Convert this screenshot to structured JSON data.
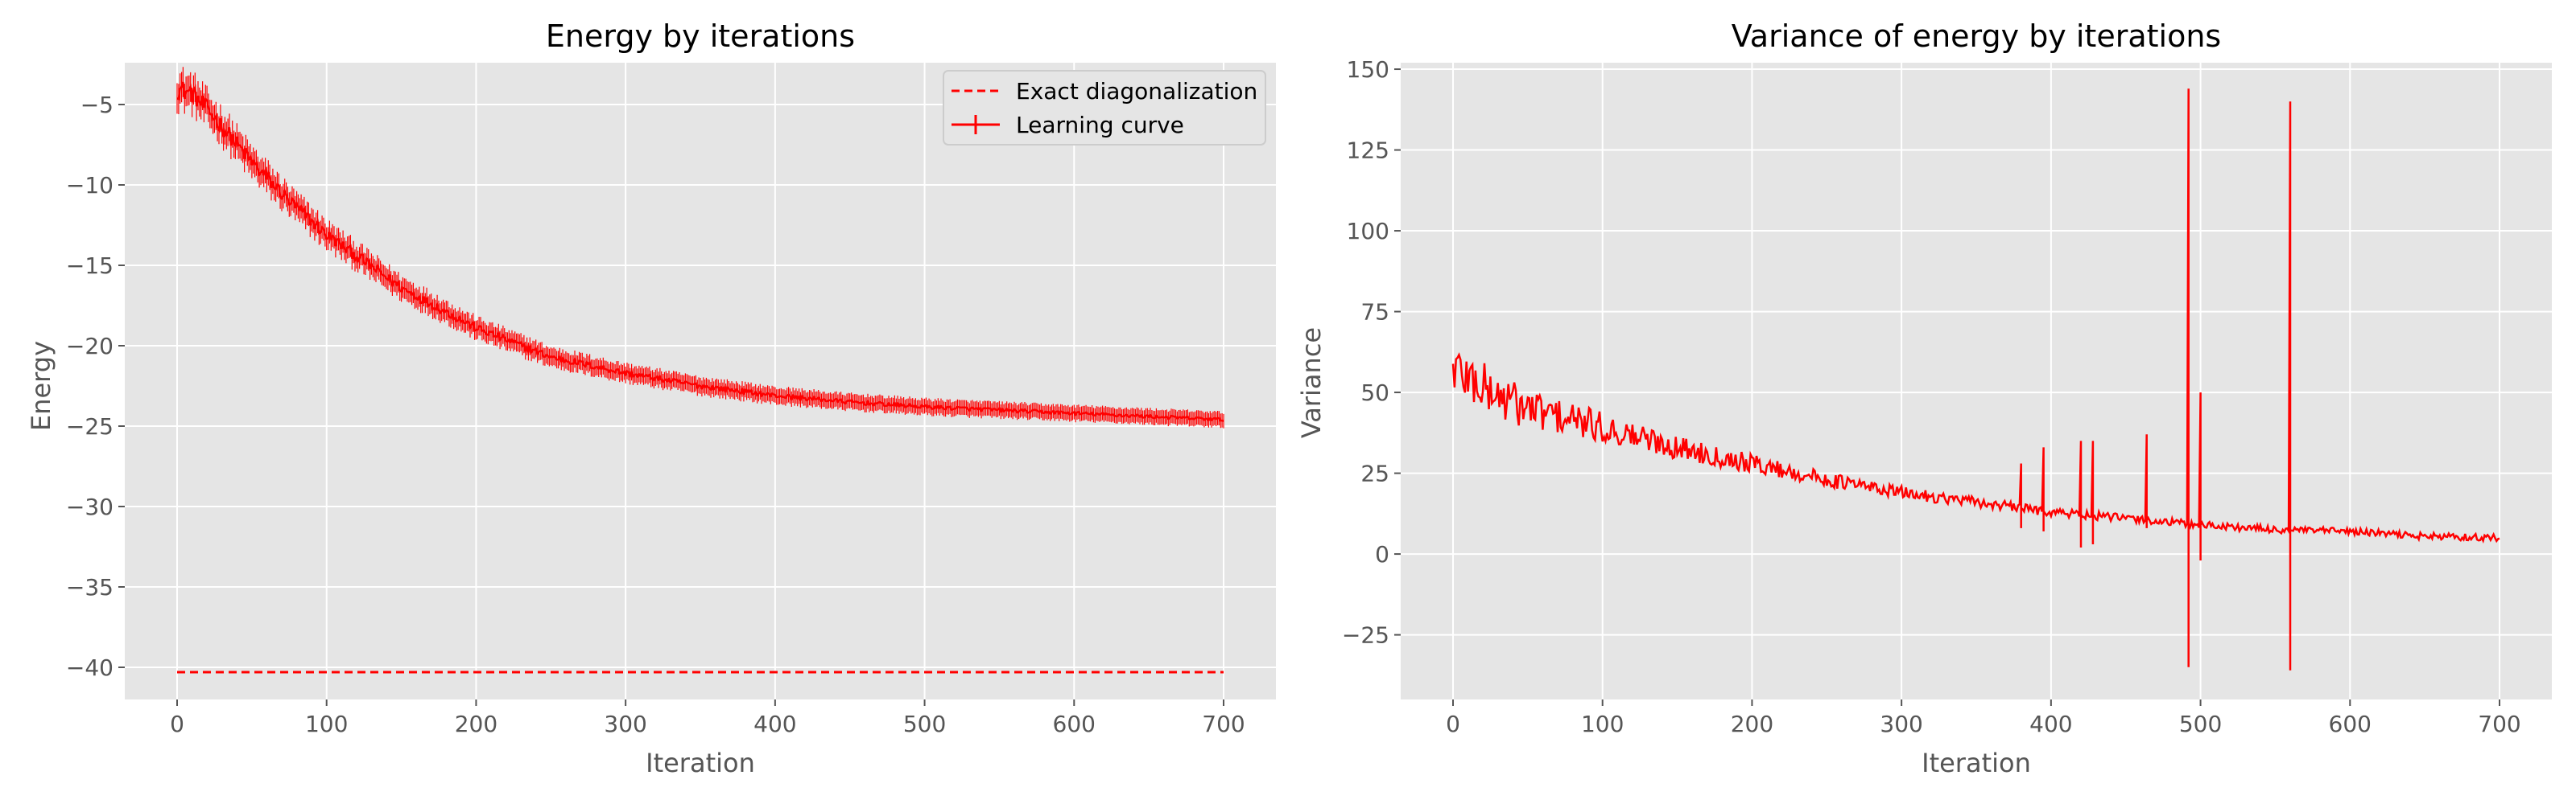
{
  "colors": {
    "panel_bg": "#e5e5e5",
    "grid": "#ffffff",
    "line": "#ff0000",
    "tick_text": "#555555"
  },
  "chart_data": [
    {
      "type": "line",
      "title": "Energy by iterations",
      "xlabel": "Iteration",
      "ylabel": "Energy",
      "xlim": [
        -35,
        735
      ],
      "ylim": [
        -42,
        -2.4
      ],
      "xticks": [
        0,
        100,
        200,
        300,
        400,
        500,
        600,
        700
      ],
      "yticks": [
        -40,
        -35,
        -30,
        -25,
        -20,
        -15,
        -10,
        -5
      ],
      "xtick_labels": [
        "0",
        "100",
        "200",
        "300",
        "400",
        "500",
        "600",
        "700"
      ],
      "ytick_labels": [
        "−40",
        "−35",
        "−30",
        "−25",
        "−20",
        "−15",
        "−10",
        "−5"
      ],
      "grid": true,
      "legend_position": "top-right",
      "series": [
        {
          "name": "Exact diagonalization",
          "style": "dashed",
          "x": [
            0,
            700
          ],
          "y": [
            -40.3,
            -40.3
          ]
        },
        {
          "name": "Learning curve",
          "style": "solid",
          "errorbar": true,
          "x": [
            0,
            10,
            25,
            50,
            75,
            100,
            150,
            200,
            250,
            300,
            350,
            400,
            450,
            500,
            550,
            600,
            650,
            700
          ],
          "y": [
            -4.0,
            -4.3,
            -5.8,
            -8.6,
            -11.0,
            -13.1,
            -16.4,
            -18.9,
            -20.7,
            -21.7,
            -22.5,
            -23.1,
            -23.5,
            -23.8,
            -24.0,
            -24.2,
            -24.4,
            -24.6
          ]
        }
      ]
    },
    {
      "type": "line",
      "title": "Variance of energy by iterations",
      "xlabel": "Iteration",
      "ylabel": "Variance",
      "xlim": [
        -35,
        735
      ],
      "ylim": [
        -45,
        152
      ],
      "xticks": [
        0,
        100,
        200,
        300,
        400,
        500,
        600,
        700
      ],
      "yticks": [
        -25,
        0,
        25,
        50,
        75,
        100,
        125,
        150
      ],
      "xtick_labels": [
        "0",
        "100",
        "200",
        "300",
        "400",
        "500",
        "600",
        "700"
      ],
      "ytick_labels": [
        "−25",
        "0",
        "25",
        "50",
        "75",
        "100",
        "125",
        "150"
      ],
      "grid": true,
      "series": [
        {
          "style": "solid",
          "x": [
            0,
            25,
            50,
            100,
            150,
            200,
            250,
            300,
            350,
            400,
            450,
            500,
            550,
            600,
            650,
            700
          ],
          "y": [
            58,
            50,
            45,
            39,
            33,
            28,
            23,
            19,
            16,
            13,
            11,
            9,
            7.5,
            7,
            5.5,
            5
          ],
          "spikes": [
            {
              "x": 492,
              "high": 144,
              "low": -35
            },
            {
              "x": 560,
              "high": 140,
              "low": -36
            },
            {
              "x": 500,
              "high": 50,
              "low": -2
            },
            {
              "x": 464,
              "high": 37,
              "low": 8
            },
            {
              "x": 428,
              "high": 35,
              "low": 3
            },
            {
              "x": 420,
              "high": 35,
              "low": 2
            },
            {
              "x": 395,
              "high": 33,
              "low": 7
            },
            {
              "x": 380,
              "high": 28,
              "low": 8
            }
          ]
        }
      ]
    }
  ]
}
